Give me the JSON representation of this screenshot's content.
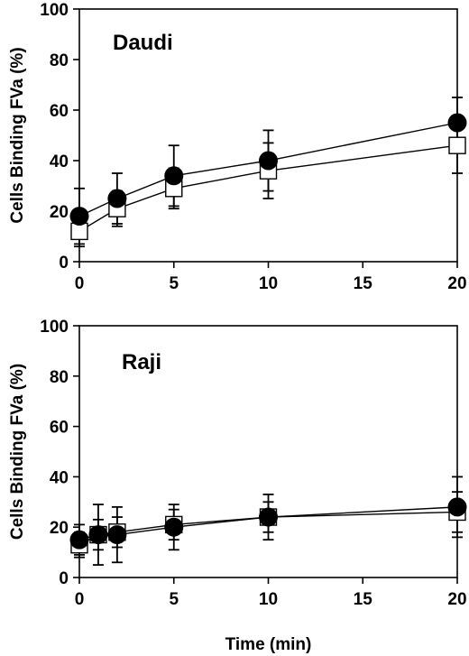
{
  "chart_data": [
    {
      "type": "line",
      "panel_label": "Daudi",
      "ylabel": "Cells Binding FVa (%)",
      "xlabel": "",
      "xlim": [
        0,
        20
      ],
      "ylim": [
        0,
        100
      ],
      "xticks": [
        0,
        5,
        10,
        15,
        20
      ],
      "yticks": [
        0,
        20,
        40,
        60,
        80,
        100
      ],
      "grid": false,
      "series": [
        {
          "marker": "open-square",
          "x": [
            0,
            2,
            5,
            10,
            20
          ],
          "y": [
            12,
            21,
            29,
            36,
            46
          ],
          "yerr": [
            6,
            7,
            8,
            11,
            11
          ]
        },
        {
          "marker": "filled-circle",
          "x": [
            0,
            2,
            5,
            10,
            20
          ],
          "y": [
            18,
            25,
            34,
            40,
            55
          ],
          "yerr": [
            11,
            10,
            12,
            12,
            10
          ]
        }
      ]
    },
    {
      "type": "line",
      "panel_label": "Raji",
      "ylabel": "Cells Binding FVa (%)",
      "xlabel": "Time (min)",
      "xlim": [
        0,
        20
      ],
      "ylim": [
        0,
        100
      ],
      "xticks": [
        0,
        5,
        10,
        15,
        20
      ],
      "yticks": [
        0,
        20,
        40,
        60,
        80,
        100
      ],
      "grid": false,
      "series": [
        {
          "marker": "open-square",
          "x": [
            0,
            1,
            2,
            5,
            10,
            20
          ],
          "y": [
            13,
            17,
            18,
            21,
            24,
            26
          ],
          "yerr": [
            5,
            6,
            6,
            6,
            6,
            8
          ]
        },
        {
          "marker": "filled-circle",
          "x": [
            0,
            1,
            2,
            5,
            10,
            20
          ],
          "y": [
            15,
            17,
            17,
            20,
            24,
            28
          ],
          "yerr": [
            6,
            12,
            11,
            9,
            9,
            12
          ]
        }
      ]
    }
  ]
}
